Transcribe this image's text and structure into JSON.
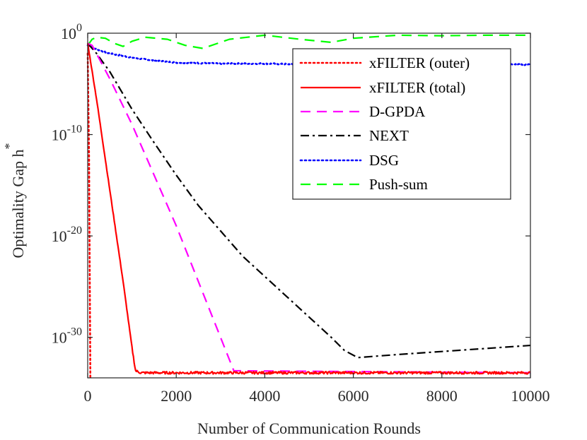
{
  "chart_data": {
    "type": "line",
    "xlabel": "Number of Communication Rounds",
    "ylabel": "Optimality Gap h",
    "ylabel_superscript": "*",
    "xlim": [
      0,
      10000
    ],
    "ylim_log10": [
      -34,
      0
    ],
    "yscale": "log",
    "grid": false,
    "legend_position": "top-right",
    "x_ticks": [
      0,
      2000,
      4000,
      6000,
      8000,
      10000
    ],
    "x_tick_labels": [
      "0",
      "2000",
      "4000",
      "6000",
      "8000",
      "10000"
    ],
    "y_ticks_log10": [
      0,
      -10,
      -20,
      -30
    ],
    "y_tick_base": "10",
    "y_tick_exponents": [
      "0",
      "-10",
      "-20",
      "-30"
    ],
    "series": [
      {
        "name": "xFILTER (outer)",
        "color": "#ff0000",
        "style": "dotted",
        "points": [
          [
            0,
            -2
          ],
          [
            30,
            -12
          ],
          [
            60,
            -34
          ]
        ]
      },
      {
        "name": "xFILTER (total)",
        "color": "#ff0000",
        "style": "solid",
        "points": [
          [
            0,
            -1
          ],
          [
            200,
            -6.5
          ],
          [
            400,
            -12.5
          ],
          [
            600,
            -18.5
          ],
          [
            800,
            -24.5
          ],
          [
            1000,
            -31
          ],
          [
            1080,
            -33.3
          ],
          [
            1200,
            -33.5
          ],
          [
            10000,
            -33.5
          ]
        ],
        "noise": 0.12
      },
      {
        "name": "D-GPDA",
        "color": "#ff00ff",
        "style": "dashed",
        "points": [
          [
            0,
            -1
          ],
          [
            100,
            -1.2
          ],
          [
            500,
            -4.5
          ],
          [
            1000,
            -9
          ],
          [
            1500,
            -14
          ],
          [
            2000,
            -19
          ],
          [
            2500,
            -24.5
          ],
          [
            3000,
            -30
          ],
          [
            3300,
            -33.3
          ],
          [
            10000,
            -33.5
          ]
        ]
      },
      {
        "name": "NEXT",
        "color": "#000000",
        "style": "dashdot",
        "points": [
          [
            0,
            -1
          ],
          [
            200,
            -2
          ],
          [
            500,
            -3.8
          ],
          [
            1000,
            -7.5
          ],
          [
            1500,
            -10.8
          ],
          [
            2000,
            -14
          ],
          [
            2500,
            -17
          ],
          [
            3000,
            -19.5
          ],
          [
            3500,
            -22
          ],
          [
            4000,
            -24
          ],
          [
            4500,
            -26
          ],
          [
            5000,
            -28
          ],
          [
            5500,
            -30
          ],
          [
            5800,
            -31.3
          ],
          [
            6100,
            -32
          ],
          [
            7000,
            -31.7
          ],
          [
            8000,
            -31.4
          ],
          [
            9000,
            -31.1
          ],
          [
            10000,
            -30.8
          ]
        ]
      },
      {
        "name": "DSG",
        "color": "#0000ff",
        "style": "dotted",
        "points": [
          [
            0,
            -1.2
          ],
          [
            200,
            -1.6
          ],
          [
            500,
            -2.0
          ],
          [
            1000,
            -2.4
          ],
          [
            1500,
            -2.7
          ],
          [
            2000,
            -2.9
          ],
          [
            3000,
            -3.0
          ],
          [
            4000,
            -3.0
          ],
          [
            5000,
            -3.1
          ],
          [
            10000,
            -3.1
          ]
        ],
        "noise": 0.12
      },
      {
        "name": "Push-sum",
        "color": "#00ff00",
        "style": "dashed",
        "points": [
          [
            0,
            -1.2
          ],
          [
            100,
            -0.6
          ],
          [
            200,
            -0.4
          ],
          [
            400,
            -0.5
          ],
          [
            600,
            -1.0
          ],
          [
            800,
            -1.3
          ],
          [
            1000,
            -0.8
          ],
          [
            1300,
            -0.4
          ],
          [
            1800,
            -0.6
          ],
          [
            2200,
            -1.2
          ],
          [
            2600,
            -1.5
          ],
          [
            3200,
            -0.6
          ],
          [
            4000,
            -0.2
          ],
          [
            4800,
            -0.6
          ],
          [
            5500,
            -0.9
          ],
          [
            6000,
            -0.5
          ],
          [
            7000,
            -0.2
          ],
          [
            8000,
            -0.25
          ],
          [
            9000,
            -0.2
          ],
          [
            10000,
            -0.2
          ]
        ]
      }
    ]
  }
}
